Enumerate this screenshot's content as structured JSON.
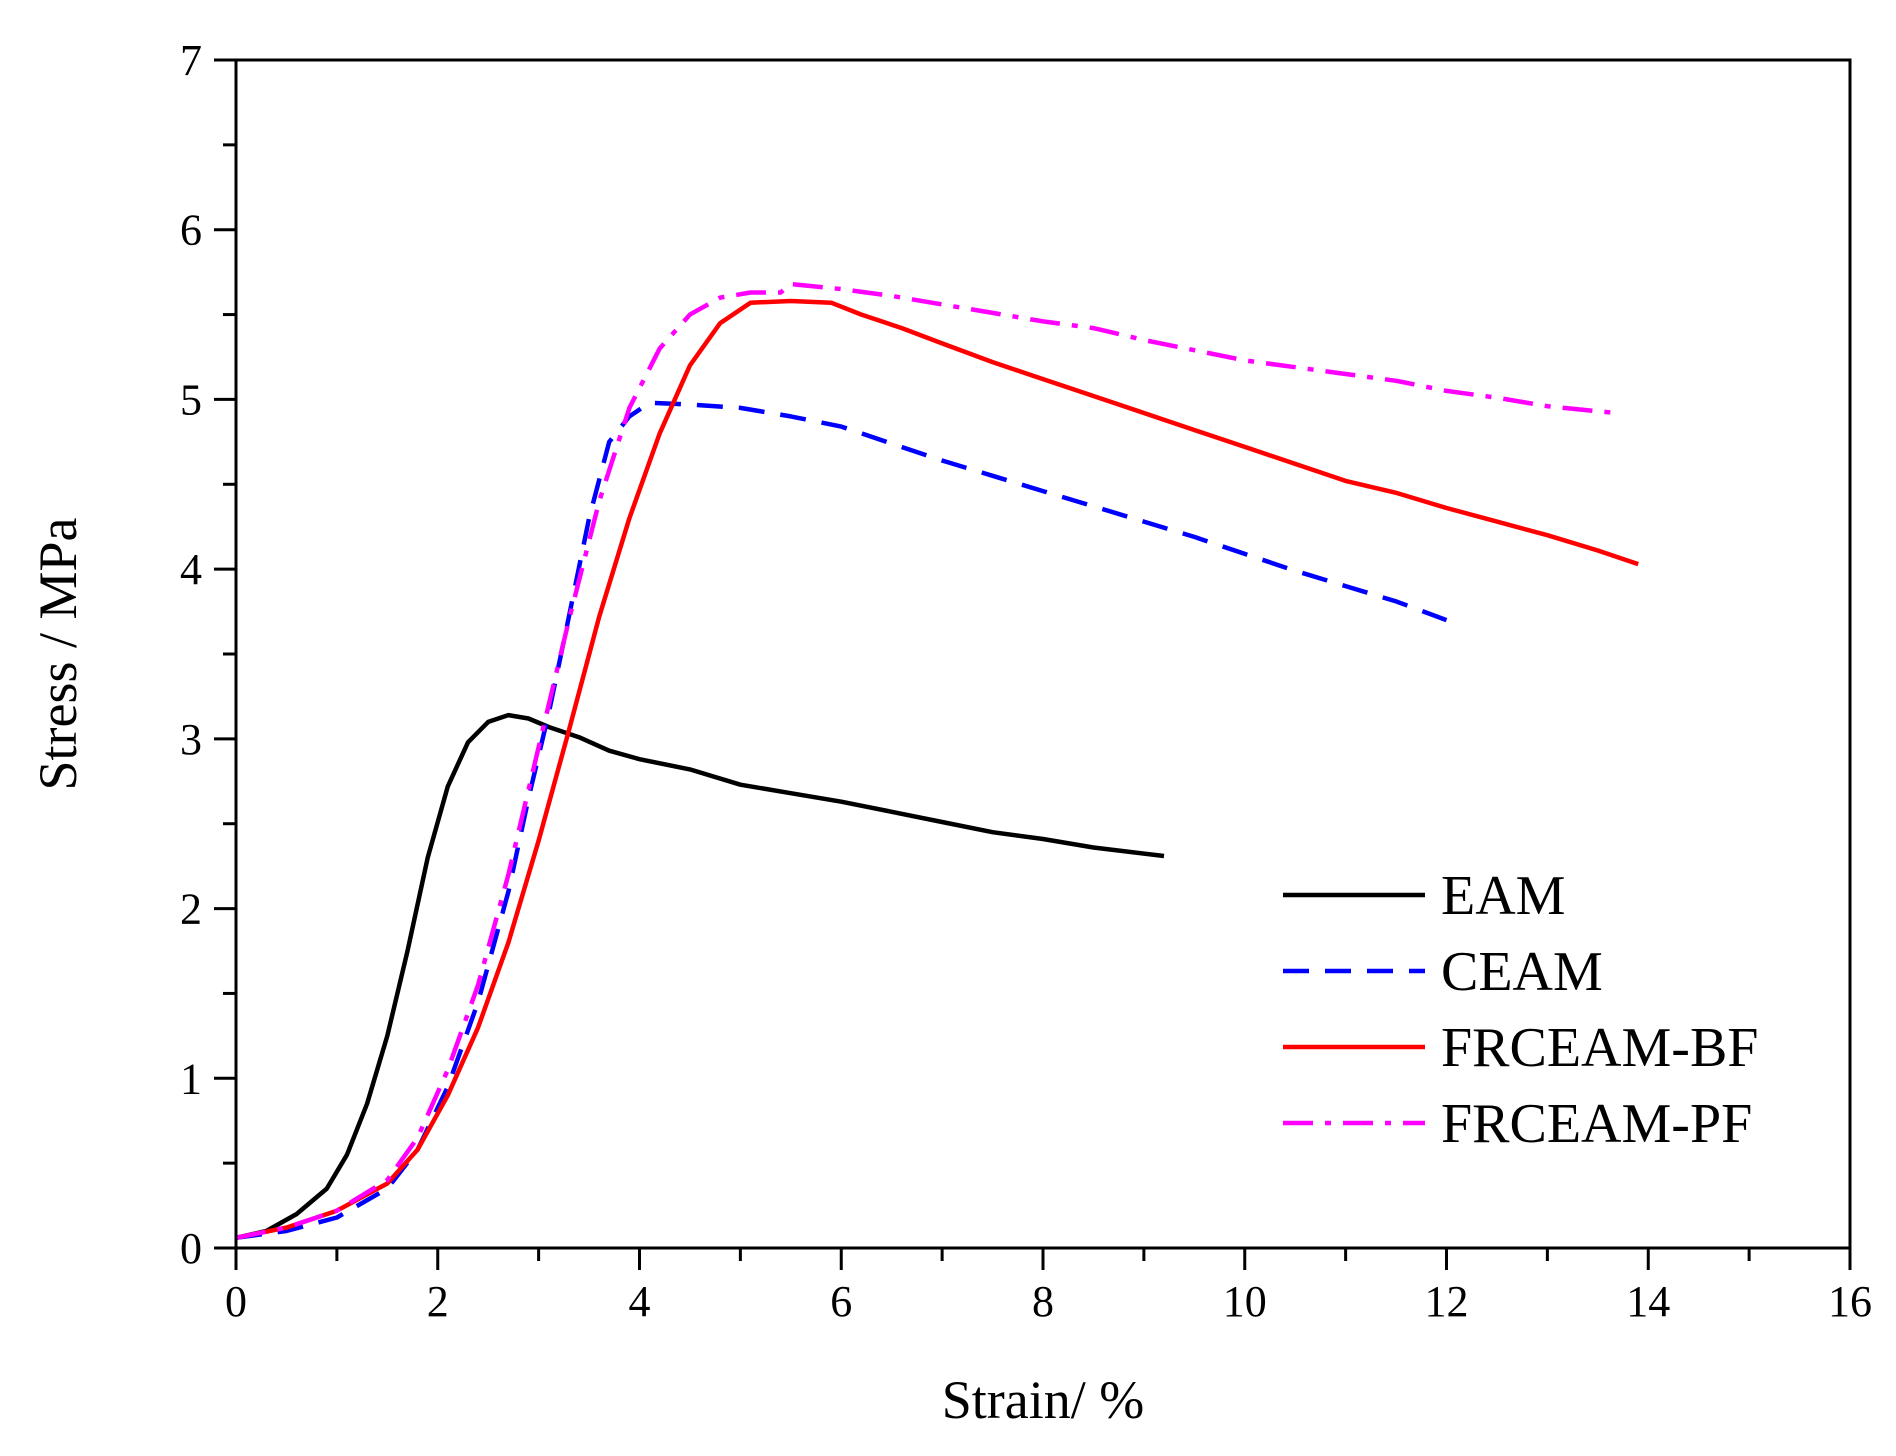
{
  "chart_data": {
    "type": "line",
    "title": "",
    "xlabel": "Strain/ %",
    "ylabel": "Stress / MPa",
    "xlim": [
      0,
      16
    ],
    "ylim": [
      0,
      7
    ],
    "xticks": [
      "0",
      "2",
      "4",
      "6",
      "8",
      "10",
      "12",
      "14",
      "16"
    ],
    "yticks": [
      "0",
      "1",
      "2",
      "3",
      "4",
      "5",
      "6",
      "7"
    ],
    "grid": false,
    "legend_position": "bottom-right",
    "series": [
      {
        "name": "EAM",
        "color": "#000000",
        "dash": "solid",
        "points": [
          [
            0,
            0.06
          ],
          [
            0.3,
            0.1
          ],
          [
            0.6,
            0.2
          ],
          [
            0.9,
            0.35
          ],
          [
            1.1,
            0.55
          ],
          [
            1.3,
            0.85
          ],
          [
            1.5,
            1.25
          ],
          [
            1.7,
            1.75
          ],
          [
            1.9,
            2.3
          ],
          [
            2.1,
            2.72
          ],
          [
            2.3,
            2.98
          ],
          [
            2.5,
            3.1
          ],
          [
            2.7,
            3.14
          ],
          [
            2.9,
            3.12
          ],
          [
            3.1,
            3.07
          ],
          [
            3.4,
            3.01
          ],
          [
            3.7,
            2.93
          ],
          [
            4.0,
            2.88
          ],
          [
            4.5,
            2.82
          ],
          [
            5.0,
            2.73
          ],
          [
            5.5,
            2.68
          ],
          [
            6.0,
            2.63
          ],
          [
            6.5,
            2.57
          ],
          [
            7.0,
            2.51
          ],
          [
            7.5,
            2.45
          ],
          [
            8.0,
            2.41
          ],
          [
            8.5,
            2.36
          ],
          [
            9.2,
            2.31
          ]
        ]
      },
      {
        "name": "CEAM",
        "color": "#0000ff",
        "dash": "dashed",
        "points": [
          [
            0,
            0.06
          ],
          [
            0.5,
            0.1
          ],
          [
            1.0,
            0.18
          ],
          [
            1.5,
            0.35
          ],
          [
            1.8,
            0.58
          ],
          [
            2.1,
            0.95
          ],
          [
            2.4,
            1.45
          ],
          [
            2.7,
            2.1
          ],
          [
            2.9,
            2.65
          ],
          [
            3.1,
            3.15
          ],
          [
            3.3,
            3.72
          ],
          [
            3.5,
            4.3
          ],
          [
            3.7,
            4.75
          ],
          [
            3.9,
            4.9
          ],
          [
            4.1,
            4.98
          ],
          [
            4.5,
            4.97
          ],
          [
            5.0,
            4.95
          ],
          [
            5.5,
            4.9
          ],
          [
            6.0,
            4.84
          ],
          [
            6.5,
            4.74
          ],
          [
            7.0,
            4.64
          ],
          [
            7.5,
            4.55
          ],
          [
            8.0,
            4.46
          ],
          [
            8.5,
            4.37
          ],
          [
            9.0,
            4.28
          ],
          [
            9.5,
            4.19
          ],
          [
            10.0,
            4.09
          ],
          [
            10.5,
            3.99
          ],
          [
            11.0,
            3.9
          ],
          [
            11.5,
            3.81
          ],
          [
            12.0,
            3.7
          ]
        ]
      },
      {
        "name": "FRCEAM-BF",
        "color": "#ff0000",
        "dash": "solid",
        "points": [
          [
            0,
            0.06
          ],
          [
            0.5,
            0.12
          ],
          [
            1.0,
            0.22
          ],
          [
            1.5,
            0.38
          ],
          [
            1.8,
            0.58
          ],
          [
            2.1,
            0.9
          ],
          [
            2.4,
            1.3
          ],
          [
            2.7,
            1.8
          ],
          [
            3.0,
            2.4
          ],
          [
            3.3,
            3.05
          ],
          [
            3.6,
            3.72
          ],
          [
            3.9,
            4.3
          ],
          [
            4.2,
            4.8
          ],
          [
            4.5,
            5.2
          ],
          [
            4.8,
            5.45
          ],
          [
            5.1,
            5.57
          ],
          [
            5.5,
            5.58
          ],
          [
            5.9,
            5.57
          ],
          [
            6.2,
            5.5
          ],
          [
            6.6,
            5.42
          ],
          [
            7.0,
            5.33
          ],
          [
            7.5,
            5.22
          ],
          [
            8.0,
            5.12
          ],
          [
            8.5,
            5.02
          ],
          [
            9.0,
            4.92
          ],
          [
            9.5,
            4.82
          ],
          [
            10.0,
            4.72
          ],
          [
            10.5,
            4.62
          ],
          [
            11.0,
            4.52
          ],
          [
            11.5,
            4.45
          ],
          [
            12.0,
            4.36
          ],
          [
            12.5,
            4.28
          ],
          [
            13.0,
            4.2
          ],
          [
            13.5,
            4.11
          ],
          [
            13.9,
            4.03
          ]
        ]
      },
      {
        "name": "FRCEAM-PF",
        "color": "#ff00ff",
        "dash": "dashdot",
        "points": [
          [
            0,
            0.06
          ],
          [
            0.5,
            0.12
          ],
          [
            1.0,
            0.22
          ],
          [
            1.5,
            0.4
          ],
          [
            1.8,
            0.65
          ],
          [
            2.1,
            1.05
          ],
          [
            2.4,
            1.55
          ],
          [
            2.7,
            2.2
          ],
          [
            3.0,
            2.95
          ],
          [
            3.3,
            3.7
          ],
          [
            3.6,
            4.4
          ],
          [
            3.9,
            4.95
          ],
          [
            4.2,
            5.3
          ],
          [
            4.5,
            5.5
          ],
          [
            4.8,
            5.6
          ],
          [
            5.1,
            5.63
          ],
          [
            5.4,
            5.63
          ],
          [
            5.5,
            5.68
          ],
          [
            6.0,
            5.65
          ],
          [
            6.5,
            5.61
          ],
          [
            7.0,
            5.56
          ],
          [
            7.5,
            5.51
          ],
          [
            8.0,
            5.46
          ],
          [
            8.5,
            5.42
          ],
          [
            9.0,
            5.35
          ],
          [
            9.5,
            5.29
          ],
          [
            10.0,
            5.23
          ],
          [
            10.5,
            5.19
          ],
          [
            11.0,
            5.15
          ],
          [
            11.5,
            5.11
          ],
          [
            12.0,
            5.05
          ],
          [
            12.5,
            5.01
          ],
          [
            13.0,
            4.96
          ],
          [
            13.5,
            4.93
          ],
          [
            13.7,
            4.92
          ]
        ]
      }
    ]
  }
}
